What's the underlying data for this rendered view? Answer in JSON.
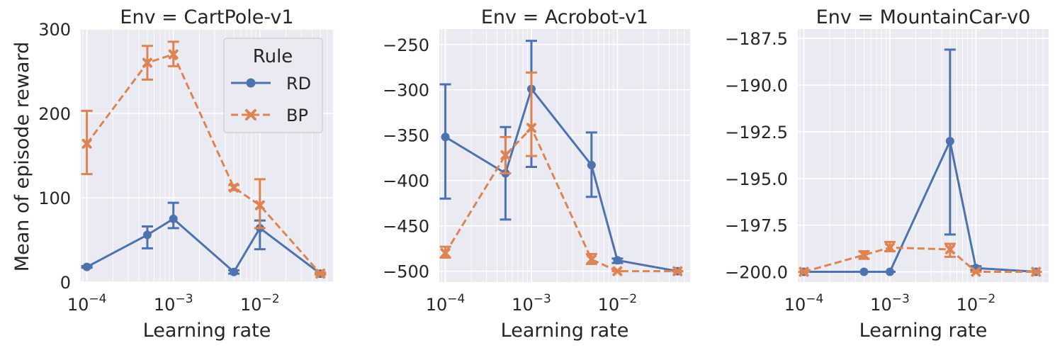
{
  "figure": {
    "ylabel": "Mean of episode reward",
    "xlabel": "Learning rate"
  },
  "legend": {
    "title": "Rule",
    "placement": "top-right",
    "entries": [
      {
        "label": "RD",
        "marker": "circle",
        "color": "#4c72b0",
        "linestyle": "solid"
      },
      {
        "label": "BP",
        "marker": "x",
        "color": "#dd8452",
        "linestyle": "dashed"
      }
    ]
  },
  "chart_data": [
    {
      "type": "line",
      "title": "Env = CartPole-v1",
      "xlabel": "Learning rate",
      "ylabel": "Mean of episode reward",
      "xscale": "log",
      "xlim": [
        8.5e-05,
        0.07
      ],
      "ylim": [
        0,
        300
      ],
      "yticks": [
        "0",
        "100",
        "200",
        "300"
      ],
      "xticks": [
        {
          "value": 0.0001,
          "base": "10",
          "exp": "−4"
        },
        {
          "value": 0.001,
          "base": "10",
          "exp": "−3"
        },
        {
          "value": 0.01,
          "base": "10",
          "exp": "−2"
        }
      ],
      "x": [
        0.0001,
        0.0005,
        0.001,
        0.005,
        0.01,
        0.05
      ],
      "series": [
        {
          "name": "RD",
          "values": [
            18,
            56,
            75,
            12,
            64,
            10
          ],
          "err_low": [
            17,
            40,
            64,
            10,
            39,
            9
          ],
          "err_high": [
            19,
            66,
            94,
            14,
            73,
            11
          ]
        },
        {
          "name": "BP",
          "values": [
            164,
            260,
            270,
            112,
            91,
            10
          ],
          "err_low": [
            128,
            240,
            256,
            109,
            64,
            9
          ],
          "err_high": [
            203,
            280,
            285,
            115,
            122,
            11
          ]
        }
      ],
      "grid": true,
      "legend": true
    },
    {
      "type": "line",
      "title": "Env = Acrobot-v1",
      "xlabel": "Learning rate",
      "ylabel": "",
      "xscale": "log",
      "xlim": [
        8.5e-05,
        0.07
      ],
      "ylim": [
        -512,
        -233
      ],
      "yticks": [
        "−250",
        "−300",
        "−350",
        "−400",
        "−450",
        "−500"
      ],
      "xticks": [
        {
          "value": 0.0001,
          "base": "10",
          "exp": "−4"
        },
        {
          "value": 0.001,
          "base": "10",
          "exp": "−3"
        },
        {
          "value": 0.01,
          "base": "10",
          "exp": "−2"
        }
      ],
      "x": [
        0.0001,
        0.0005,
        0.001,
        0.005,
        0.01,
        0.05
      ],
      "series": [
        {
          "name": "RD",
          "values": [
            -352,
            -392,
            -299,
            -383,
            -488,
            -500
          ],
          "err_low": [
            -420,
            -443,
            -385,
            -418,
            -491,
            -500
          ],
          "err_high": [
            -294,
            -341,
            -246,
            -347,
            -486,
            -500
          ]
        },
        {
          "name": "BP",
          "values": [
            -480,
            -372,
            -342,
            -487,
            -500,
            -500
          ],
          "err_low": [
            -485,
            -392,
            -373,
            -492,
            -500,
            -500
          ],
          "err_high": [
            -473,
            -352,
            -281,
            -481,
            -500,
            -500
          ]
        }
      ],
      "grid": true,
      "legend": false
    },
    {
      "type": "line",
      "title": "Env = MountainCar-v0",
      "xlabel": "Learning rate",
      "ylabel": "",
      "xscale": "log",
      "xlim": [
        8.5e-05,
        0.07
      ],
      "ylim": [
        -200.55,
        -187.0
      ],
      "yticks": [
        "−187.5",
        "−190.0",
        "−192.5",
        "−195.0",
        "−197.5",
        "−200.0"
      ],
      "xticks": [
        {
          "value": 0.0001,
          "base": "10",
          "exp": "−4"
        },
        {
          "value": 0.001,
          "base": "10",
          "exp": "−3"
        },
        {
          "value": 0.01,
          "base": "10",
          "exp": "−2"
        }
      ],
      "x": [
        0.0001,
        0.0005,
        0.001,
        0.005,
        0.01,
        0.05
      ],
      "series": [
        {
          "name": "RD",
          "values": [
            -200.0,
            -200.0,
            -200.0,
            -193.0,
            -199.8,
            -200.0
          ],
          "err_low": [
            -200.0,
            -200.0,
            -200.0,
            -198.0,
            -199.9,
            -200.0
          ],
          "err_high": [
            -200.0,
            -200.0,
            -200.0,
            -188.1,
            -199.7,
            -200.0
          ]
        },
        {
          "name": "BP",
          "values": [
            -200.0,
            -199.1,
            -198.7,
            -198.8,
            -200.0,
            -200.0
          ],
          "err_low": [
            -200.0,
            -199.3,
            -198.9,
            -199.2,
            -200.0,
            -200.0
          ],
          "err_high": [
            -200.0,
            -198.9,
            -198.4,
            -198.5,
            -200.0,
            -200.0
          ]
        }
      ],
      "grid": true,
      "legend": false
    }
  ]
}
